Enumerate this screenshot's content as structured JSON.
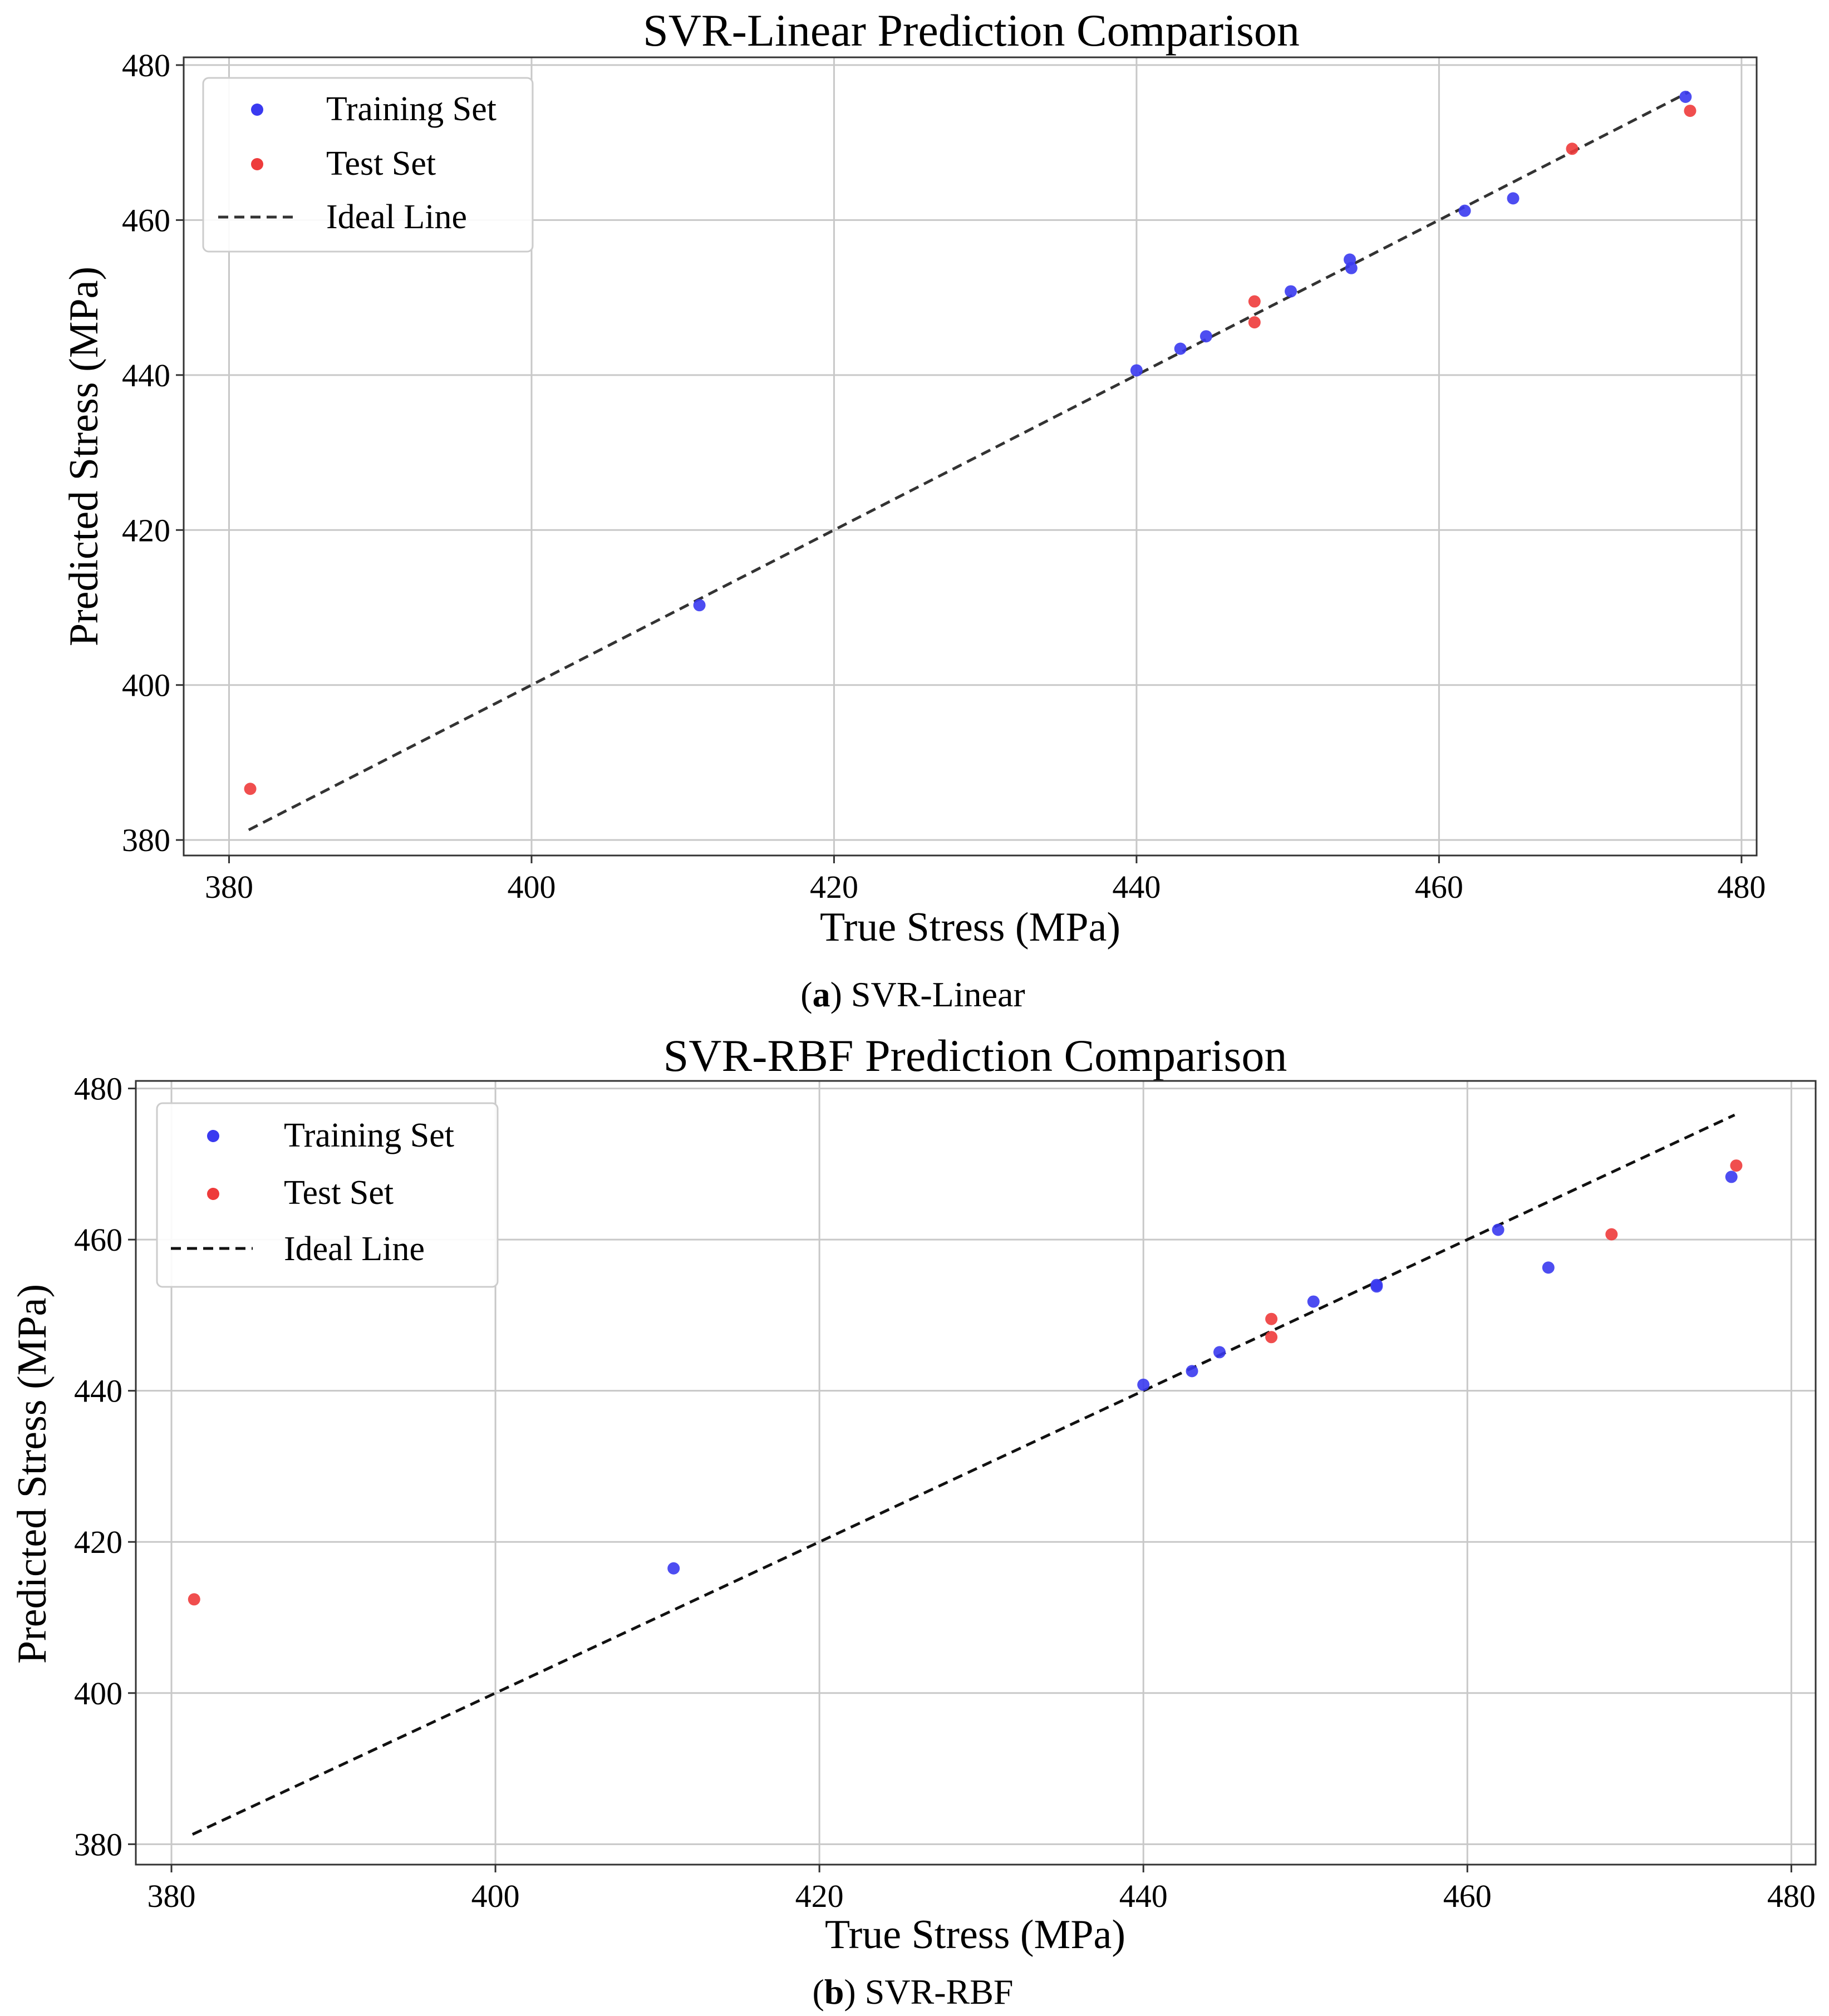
{
  "chart_data": [
    {
      "type": "scatter",
      "title": "SVR-Linear Prediction Comparison",
      "xlabel": "True Stress (MPa)",
      "ylabel": "Predicted Stress (MPa)",
      "xlim": [
        377,
        481
      ],
      "ylim": [
        378,
        481
      ],
      "xticks": [
        "380",
        "400",
        "420",
        "440",
        "460",
        "480"
      ],
      "yticks": [
        "380",
        "400",
        "420",
        "440",
        "460",
        "480"
      ],
      "grid": true,
      "legend_position": "top-left",
      "legend": {
        "training": "Training Set",
        "test": "Test Set",
        "ideal": "Ideal Line"
      },
      "ideal_line": {
        "x": [
          381.3,
          476.5
        ],
        "y": [
          381.3,
          476.5
        ]
      },
      "series": [
        {
          "name": "Training Set",
          "color": "#3a3af0",
          "points": [
            [
              411.1,
              410.3
            ],
            [
              440.0,
              440.6
            ],
            [
              442.9,
              443.4
            ],
            [
              444.6,
              445.0
            ],
            [
              450.2,
              450.8
            ],
            [
              454.1,
              454.9
            ],
            [
              454.2,
              453.8
            ],
            [
              461.7,
              461.2
            ],
            [
              464.9,
              462.8
            ],
            [
              476.3,
              475.9
            ]
          ]
        },
        {
          "name": "Test Set",
          "color": "#ee3b3b",
          "points": [
            [
              381.4,
              386.6
            ],
            [
              447.8,
              449.5
            ],
            [
              447.8,
              446.8
            ],
            [
              468.8,
              469.2
            ],
            [
              476.6,
              474.1
            ]
          ]
        }
      ],
      "caption_letter": "a",
      "caption_text": ") SVR-Linear"
    },
    {
      "type": "scatter",
      "title": "SVR-RBF Prediction Comparison",
      "xlabel": "True Stress (MPa)",
      "ylabel": "Predicted Stress (MPa)",
      "xlim": [
        377.8,
        481.5
      ],
      "ylim": [
        377.3,
        481.0
      ],
      "xticks": [
        "380",
        "400",
        "420",
        "440",
        "460",
        "480"
      ],
      "yticks": [
        "380",
        "400",
        "420",
        "440",
        "460",
        "480"
      ],
      "grid": true,
      "legend_position": "top-left",
      "legend": {
        "training": "Training Set",
        "test": "Test Set",
        "ideal": "Ideal Line"
      },
      "ideal_line": {
        "x": [
          381.3,
          476.5
        ],
        "y": [
          381.3,
          476.5
        ]
      },
      "series": [
        {
          "name": "Training Set",
          "color": "#3a3af0",
          "points": [
            [
              411.0,
              416.5
            ],
            [
              440.0,
              440.8
            ],
            [
              443.0,
              442.6
            ],
            [
              444.7,
              445.1
            ],
            [
              450.5,
              451.8
            ],
            [
              454.4,
              453.8
            ],
            [
              454.4,
              454.0
            ],
            [
              461.9,
              461.3
            ],
            [
              465.0,
              456.3
            ],
            [
              476.3,
              468.3
            ]
          ]
        },
        {
          "name": "Test Set",
          "color": "#ee3b3b",
          "points": [
            [
              381.4,
              412.4
            ],
            [
              447.9,
              449.5
            ],
            [
              447.9,
              447.1
            ],
            [
              468.9,
              460.7
            ],
            [
              476.6,
              469.8
            ]
          ]
        }
      ],
      "caption_letter": "b",
      "caption_text": ") SVR-RBF"
    }
  ]
}
